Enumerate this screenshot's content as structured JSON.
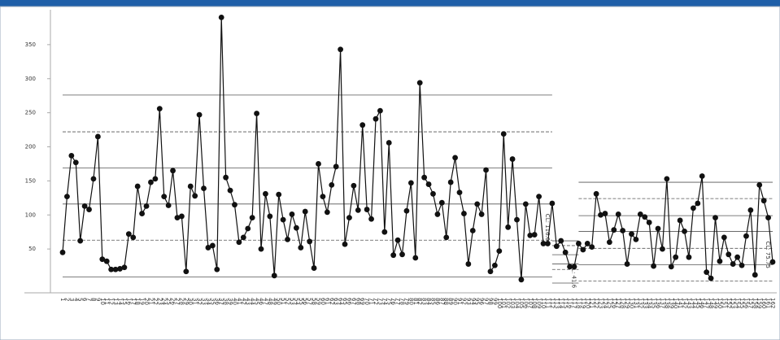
{
  "chart_data": {
    "type": "control",
    "categories": [
      "1",
      "2",
      "3",
      "4",
      "5",
      "6",
      "7",
      "8",
      "9",
      "10",
      "11",
      "12",
      "13",
      "14",
      "15",
      "16",
      "17",
      "18",
      "19",
      "20",
      "21",
      "22",
      "23",
      "24",
      "25",
      "26",
      "27",
      "28",
      "29",
      "30",
      "31",
      "32",
      "33",
      "34",
      "35",
      "36",
      "37",
      "38",
      "39",
      "40",
      "41",
      "42",
      "43",
      "44",
      "45",
      "46",
      "47",
      "48",
      "49",
      "50",
      "51",
      "52",
      "53",
      "54",
      "55",
      "56",
      "57",
      "58",
      "59",
      "60",
      "61",
      "62",
      "63",
      "64",
      "65",
      "66",
      "67",
      "68",
      "69",
      "70",
      "71",
      "72",
      "73",
      "74",
      "75",
      "76",
      "77",
      "78",
      "79",
      "80",
      "81",
      "82",
      "83",
      "84",
      "85",
      "86",
      "87",
      "88",
      "89",
      "90",
      "91",
      "92",
      "93",
      "94",
      "95",
      "96",
      "97",
      "98",
      "99",
      "100",
      "101",
      "102",
      "103",
      "104",
      "105",
      "106",
      "107",
      "108",
      "109",
      "110",
      "111",
      "112",
      "113",
      "114",
      "115",
      "116",
      "117",
      "118",
      "119",
      "120",
      "121",
      "122",
      "123",
      "124",
      "125",
      "126",
      "127",
      "128",
      "129",
      "130",
      "131",
      "132",
      "133",
      "134",
      "135",
      "136",
      "137",
      "138",
      "139",
      "140",
      "141",
      "142",
      "143",
      "144",
      "145",
      "146",
      "147",
      "148",
      "149",
      "150",
      "151",
      "152",
      "153",
      "154",
      "155",
      "156",
      "157",
      "158",
      "159",
      "160",
      "161",
      "162"
    ],
    "values": [
      45,
      127,
      187,
      177,
      62,
      113,
      108,
      153,
      215,
      35,
      32,
      20,
      20,
      21,
      23,
      72,
      67,
      142,
      102,
      113,
      148,
      153,
      256,
      127,
      114,
      165,
      96,
      98,
      17,
      142,
      128,
      247,
      139,
      52,
      55,
      20,
      390,
      155,
      136,
      115,
      60,
      67,
      80,
      96,
      249,
      50,
      131,
      98,
      11,
      130,
      93,
      64,
      101,
      81,
      52,
      105,
      61,
      22,
      175,
      127,
      104,
      144,
      171,
      343,
      57,
      96,
      143,
      107,
      232,
      108,
      94,
      241,
      253,
      75,
      206,
      41,
      63,
      42,
      106,
      147,
      37,
      294,
      155,
      145,
      131,
      101,
      118,
      67,
      148,
      184,
      133,
      102,
      28,
      77,
      116,
      101,
      166,
      17,
      26,
      47,
      219,
      82,
      182,
      93,
      5,
      116,
      70,
      71,
      127,
      58,
      58,
      117,
      54,
      62,
      45,
      24,
      24,
      58,
      49,
      58,
      53,
      131,
      100,
      102,
      60,
      78,
      101,
      77,
      28,
      72,
      64,
      101,
      97,
      89,
      25,
      80,
      50,
      153,
      24,
      38,
      92,
      76,
      38,
      110,
      117,
      157,
      16,
      7,
      96,
      32,
      67,
      42,
      28,
      38,
      26,
      69,
      107,
      12,
      144,
      121,
      96,
      31
    ],
    "color": "#111111",
    "ylim": [
      0,
      400
    ],
    "yticks": [
      50,
      100,
      150,
      200,
      250,
      300,
      350
    ],
    "control_limits": [
      {
        "start": 0,
        "end": 111,
        "label": "CL: 116.0",
        "cl": 116.05,
        "lines": [
          276,
          222,
          169,
          63,
          9
        ]
      },
      {
        "start": 111,
        "end": 117,
        "label": "CL: 41.6",
        "cl": 41.6,
        "lines": [
          62,
          55,
          28,
          20,
          0
        ]
      },
      {
        "start": 117,
        "end": 161,
        "label": "CL: 75.75",
        "cl": 75.75,
        "lines": [
          148,
          124,
          99,
          51,
          27,
          3
        ]
      }
    ]
  }
}
